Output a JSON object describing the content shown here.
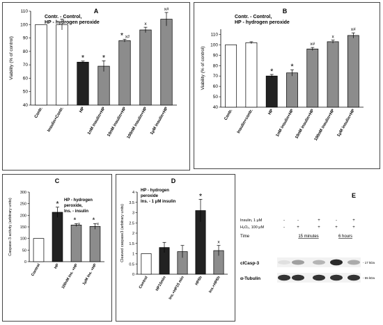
{
  "chart_data": [
    {
      "panel": "A",
      "type": "bar",
      "ylabel": "Viability (% of control)",
      "ylim": [
        40,
        110
      ],
      "yticks": [
        40,
        50,
        60,
        70,
        80,
        90,
        100,
        110
      ],
      "legend": [
        "Contr. - Control,",
        "HP - hydrogen peroxide"
      ],
      "categories": [
        "Contr.",
        "Insulin+Contr.",
        "HP",
        "1nM insulin+HP",
        "10nM insulin+HP",
        "100nM insulin+HP",
        "1μM insulin+HP"
      ],
      "values": [
        100,
        100,
        72,
        69,
        88,
        96,
        104
      ],
      "errors": [
        0,
        4,
        0.8,
        4,
        1,
        2,
        5
      ],
      "colors": [
        "#ffffff",
        "#ffffff",
        "#222222",
        "#8c8c8c",
        "#8c8c8c",
        "#8c8c8c",
        "#8c8c8c"
      ],
      "annotations": [
        "",
        "",
        "*",
        "*",
        "*\nx#",
        "x",
        "x#"
      ]
    },
    {
      "panel": "B",
      "type": "bar",
      "ylabel": "Viability (% of control)",
      "ylim": [
        40,
        115
      ],
      "yticks": [
        40,
        50,
        60,
        70,
        80,
        90,
        100,
        110
      ],
      "legend": [
        "Contr. - Control,",
        "HP - hydrogen peroxide"
      ],
      "categories": [
        "Contr.",
        "Insulin+contr.",
        "HP",
        "1nM insulin+HP",
        "10nM insulin+HP",
        "100nM insulin+HP",
        "1μM insulin+HP"
      ],
      "values": [
        100,
        102,
        70,
        73,
        96,
        103,
        109
      ],
      "errors": [
        0,
        1,
        1.5,
        3,
        1.5,
        1.5,
        2.5
      ],
      "colors": [
        "#ffffff",
        "#ffffff",
        "#222222",
        "#8c8c8c",
        "#8c8c8c",
        "#8c8c8c",
        "#8c8c8c"
      ],
      "annotations": [
        "",
        "",
        "*",
        "*",
        "x#",
        "x",
        "x#"
      ]
    },
    {
      "panel": "C",
      "type": "bar",
      "ylabel": "Caspase-3  activity (arbitrary units)",
      "ylim": [
        0,
        300
      ],
      "yticks": [
        0,
        50,
        100,
        150,
        200,
        250,
        300
      ],
      "legend": [
        "HP - hydrogen",
        "peroxide,",
        "Ins. - insulin"
      ],
      "categories": [
        "Control",
        "HP",
        "100nM Ins. +HP",
        "1μM Ins. +HP"
      ],
      "values": [
        100,
        213,
        158,
        152
      ],
      "errors": [
        0,
        22,
        6,
        12
      ],
      "colors": [
        "#ffffff",
        "#222222",
        "#8c8c8c",
        "#8c8c8c"
      ],
      "annotations": [
        "",
        "*",
        "*x",
        "*x"
      ]
    },
    {
      "panel": "D",
      "type": "bar",
      "ylabel": "Cleaved caspase3 (arbitrary units)",
      "ylim": [
        0,
        4
      ],
      "yticks": [
        0,
        0.5,
        1,
        1.5,
        2,
        2.5,
        3,
        3.5,
        4
      ],
      "legend": [
        "HP - hydrogen",
        "peroxide",
        "Ins. - 1 μM insulin"
      ],
      "categories": [
        "Control",
        "HP15min",
        "Ins.+HP15 min",
        "HP6h",
        "Ins.+HP6h"
      ],
      "values": [
        1,
        1.3,
        1.1,
        3.1,
        1.15
      ],
      "errors": [
        0,
        0.25,
        0.3,
        0.55,
        0.25
      ],
      "colors": [
        "#ffffff",
        "#222222",
        "#8c8c8c",
        "#222222",
        "#8c8c8c"
      ],
      "annotations": [
        "",
        "",
        "",
        "*",
        "x"
      ]
    }
  ],
  "western_blot": {
    "panel": "E",
    "rows": [
      {
        "label": "Insulin, 1 μM",
        "signs": [
          "-",
          "-",
          "+",
          "-",
          "+"
        ]
      },
      {
        "label": "H₂O₂, 100 μM",
        "signs": [
          "-",
          "+",
          "+",
          "+",
          "+"
        ]
      }
    ],
    "time_label": "Time",
    "time_groups": [
      "15 minutes",
      "6 hours"
    ],
    "bands": [
      {
        "label": "clCasp-3",
        "kda": "- 17 kDa",
        "intensities": [
          0.05,
          0.35,
          0.25,
          0.9,
          0.3
        ]
      },
      {
        "label": "α-Tubulin",
        "kda": "- 55 kDa",
        "intensities": [
          0.85,
          0.85,
          0.85,
          0.85,
          0.85
        ]
      }
    ]
  }
}
